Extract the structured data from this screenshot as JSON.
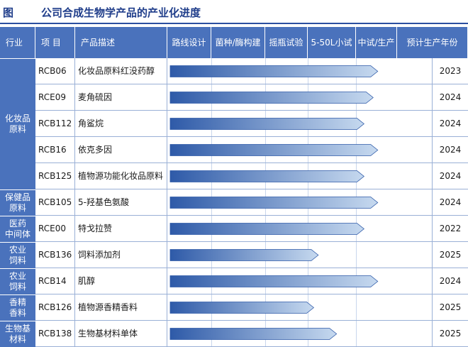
{
  "title": {
    "figure_label": "图",
    "text": "公司合成生物学产品的产业化进度"
  },
  "headers": {
    "industry": "行业",
    "project": "项 目",
    "description": "产品描述",
    "stages": [
      "路线设计",
      "菌种/酶构建",
      "摇瓶试验",
      "5-50L小试",
      "中试/生产"
    ],
    "year": "预计生产年份"
  },
  "colors": {
    "header_bg": "#4a72bc",
    "arrow_fill_start": "#2e5aa8",
    "arrow_fill_end": "#c6d9ef"
  },
  "industries": [
    {
      "label": "化妆品\n原料",
      "rows": 5
    },
    {
      "label": "保健品\n原料",
      "rows": 1
    },
    {
      "label": "医药\n中间体",
      "rows": 1
    },
    {
      "label": "农业\n饲料",
      "rows": 1
    },
    {
      "label": "农业\n饲料",
      "rows": 1
    },
    {
      "label": "香精\n香料",
      "rows": 1
    },
    {
      "label": "生物基\n材料",
      "rows": 1
    }
  ],
  "rows": [
    {
      "project": "RCB06",
      "description": "化妆品原料红没药醇",
      "progress_stages": 4.6,
      "year": "2023"
    },
    {
      "project": "RCE09",
      "description": "麦角硫因",
      "progress_stages": 4.5,
      "year": "2024"
    },
    {
      "project": "RCB112",
      "description": "角鲨烷",
      "progress_stages": 4.3,
      "year": "2024"
    },
    {
      "project": "RCB16",
      "description": "依克多因",
      "progress_stages": 4.6,
      "year": "2024"
    },
    {
      "project": "RCB125",
      "description": "植物源功能化妆品原料",
      "progress_stages": 4.3,
      "year": "2024"
    },
    {
      "project": "RCB105",
      "description": "5-羟基色氨酸",
      "progress_stages": 4.6,
      "year": "2024"
    },
    {
      "project": "RCE00",
      "description": "特戈拉赞",
      "progress_stages": 4.3,
      "year": "2022"
    },
    {
      "project": "RCB136",
      "description": "饲料添加剂",
      "progress_stages": 3.3,
      "year": "2025"
    },
    {
      "project": "RCB14",
      "description": "肌醇",
      "progress_stages": 4.6,
      "year": "2024"
    },
    {
      "project": "RCB126",
      "description": "植物源香精香料",
      "progress_stages": 3.2,
      "year": "2025"
    },
    {
      "project": "RCB138",
      "description": "生物基材料单体",
      "progress_stages": 3.7,
      "year": "2025"
    }
  ]
}
